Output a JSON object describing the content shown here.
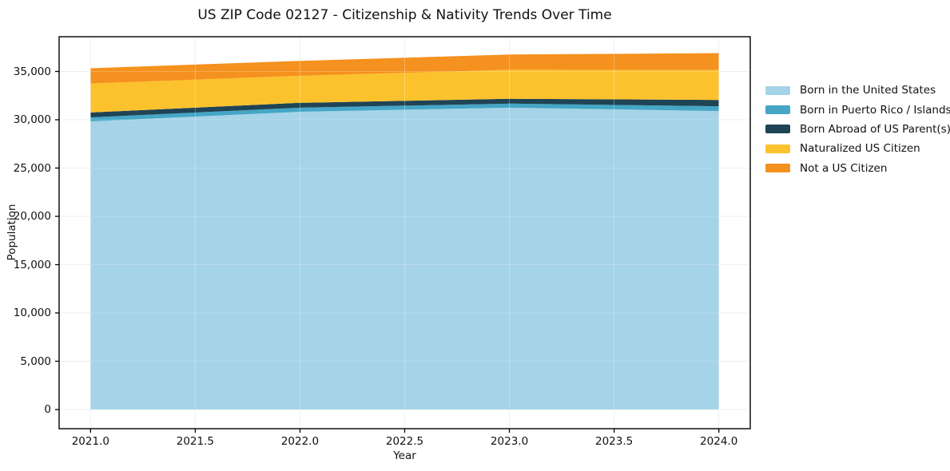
{
  "chart_data": {
    "type": "area",
    "stacked": true,
    "title": "US ZIP Code 02127 - Citizenship & Nativity Trends Over Time",
    "xlabel": "Year",
    "ylabel": "Population",
    "x": [
      2021,
      2022,
      2023,
      2024
    ],
    "series": [
      {
        "name": "Born in the United States",
        "color": "#a5d3e7",
        "values": [
          29830,
          30830,
          31250,
          30900
        ]
      },
      {
        "name": "Born in Puerto Rico / Islands",
        "color": "#45a6c6",
        "values": [
          420,
          420,
          420,
          500
        ]
      },
      {
        "name": "Born Abroad of US Parent(s)",
        "color": "#1f4455",
        "values": [
          500,
          500,
          500,
          650
        ]
      },
      {
        "name": "Naturalized US Citizen",
        "color": "#fcc22d",
        "values": [
          3000,
          2800,
          3000,
          3100
        ]
      },
      {
        "name": "Not a US Citizen",
        "color": "#f5911e",
        "values": [
          1580,
          1540,
          1580,
          1750
        ]
      }
    ],
    "totals": [
      35330,
      36090,
      36750,
      36900
    ],
    "xlim": [
      2020.85,
      2024.15
    ],
    "ylim": [
      -1983,
      38595
    ],
    "x_ticks": [
      {
        "value": 2021.0,
        "label": "2021.0"
      },
      {
        "value": 2021.5,
        "label": "2021.5"
      },
      {
        "value": 2022.0,
        "label": "2022.0"
      },
      {
        "value": 2022.5,
        "label": "2022.5"
      },
      {
        "value": 2023.0,
        "label": "2023.0"
      },
      {
        "value": 2023.5,
        "label": "2023.5"
      },
      {
        "value": 2024.0,
        "label": "2024.0"
      }
    ],
    "y_ticks": [
      {
        "value": 0,
        "label": "0"
      },
      {
        "value": 5000,
        "label": "5,000"
      },
      {
        "value": 10000,
        "label": "10,000"
      },
      {
        "value": 15000,
        "label": "15,000"
      },
      {
        "value": 20000,
        "label": "20,000"
      },
      {
        "value": 25000,
        "label": "25,000"
      },
      {
        "value": 30000,
        "label": "30,000"
      },
      {
        "value": 35000,
        "label": "35,000"
      }
    ],
    "grid": true,
    "grid_color": "#ebebeb",
    "frame_color": "#000000",
    "legend_position": "right"
  }
}
